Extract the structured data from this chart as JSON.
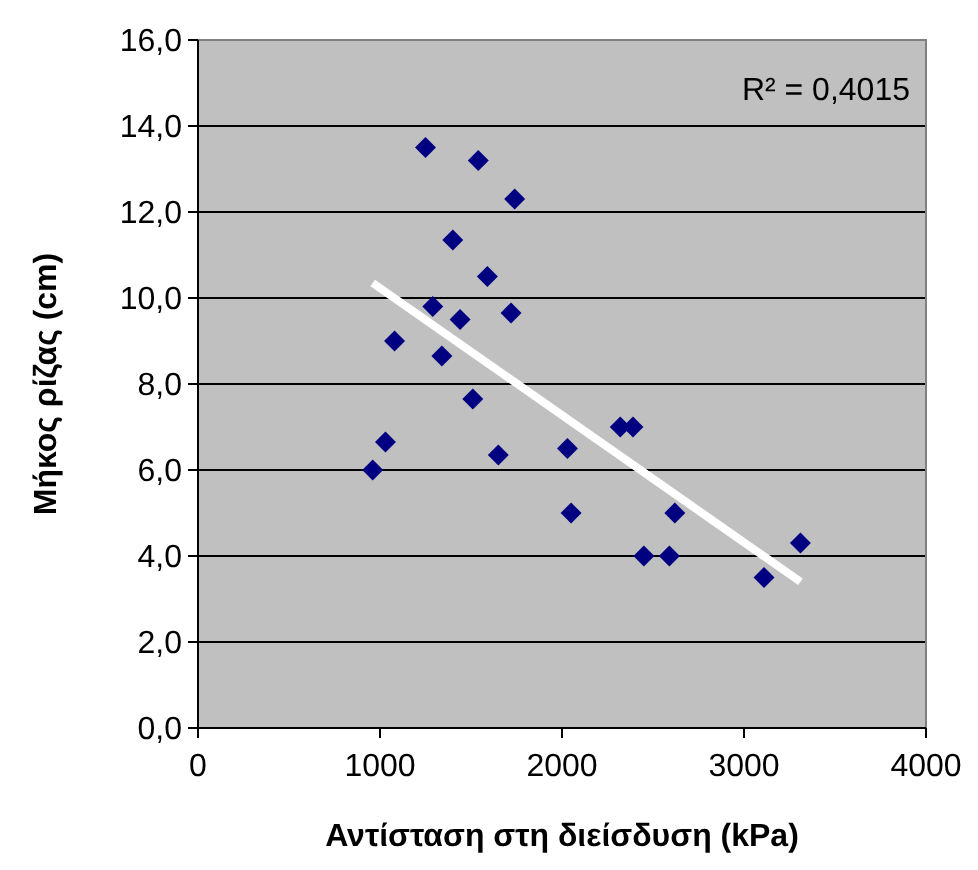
{
  "chart_data": {
    "type": "scatter",
    "xlabel": "Αντίσταση στη διείσδυση (kPa)",
    "ylabel": "Μήκος ρίζας (cm)",
    "xlim": [
      0,
      4000
    ],
    "ylim": [
      0,
      16
    ],
    "xticks": [
      0,
      1000,
      2000,
      3000,
      4000
    ],
    "yticks": [
      {
        "value": 0,
        "label": "0,0"
      },
      {
        "value": 2,
        "label": "2,0"
      },
      {
        "value": 4,
        "label": "4,0"
      },
      {
        "value": 6,
        "label": "6,0"
      },
      {
        "value": 8,
        "label": "8,0"
      },
      {
        "value": 10,
        "label": "10,0"
      },
      {
        "value": 12,
        "label": "12,0"
      },
      {
        "value": 14,
        "label": "14,0"
      },
      {
        "value": 16,
        "label": "16,0"
      }
    ],
    "grid": "y",
    "annotations": [
      "R² = 0,4015"
    ],
    "series": [
      {
        "marker": "diamond",
        "color": "#000080",
        "x": [
          960,
          1030,
          1080,
          1250,
          1290,
          1340,
          1400,
          1440,
          1510,
          1540,
          1590,
          1650,
          1720,
          1740,
          2030,
          2050,
          2320,
          2390,
          2450,
          2590,
          2620,
          3110,
          3310
        ],
        "values": [
          6.0,
          6.65,
          9.0,
          13.5,
          9.8,
          8.65,
          11.35,
          9.5,
          7.65,
          13.2,
          10.5,
          6.35,
          9.65,
          12.3,
          6.5,
          5.0,
          7.0,
          7.0,
          4.0,
          4.0,
          5.0,
          3.5,
          4.3
        ]
      },
      {
        "type": "line",
        "marker": "none",
        "color": "#ffffff",
        "x": [
          960,
          3310
        ],
        "values": [
          10.35,
          3.4
        ]
      }
    ]
  }
}
